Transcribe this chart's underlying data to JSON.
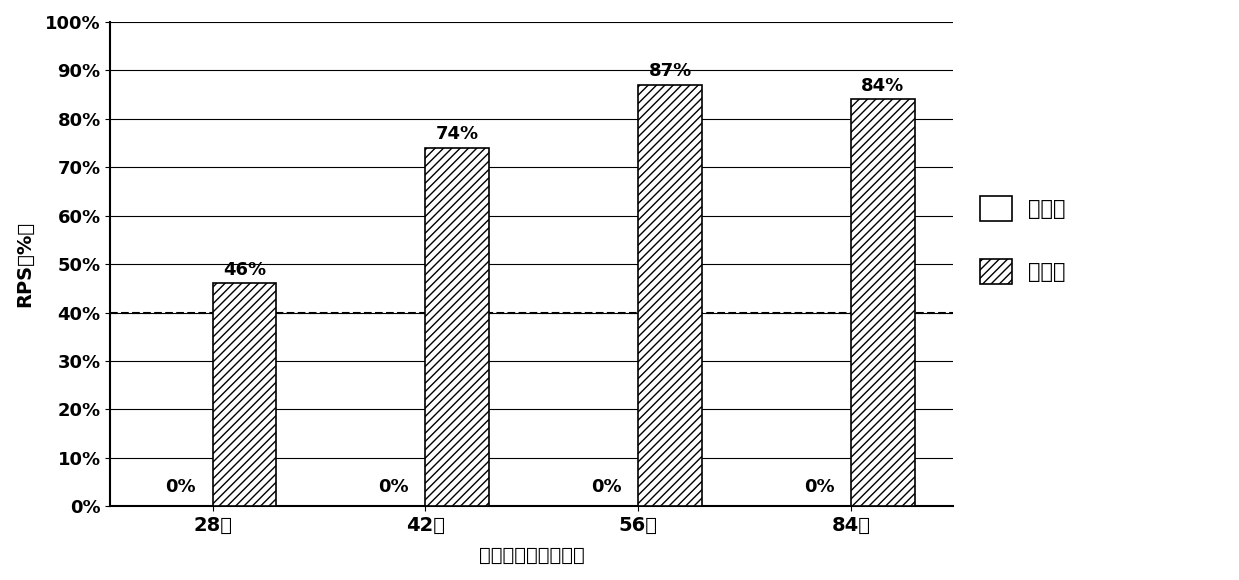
{
  "groups": [
    "28天",
    "42天",
    "56天",
    "84天"
  ],
  "control_values": [
    0,
    0,
    0,
    0
  ],
  "experiment_values": [
    46,
    74,
    87,
    84
  ],
  "control_labels": [
    "0%",
    "0%",
    "0%",
    "0%"
  ],
  "experiment_labels": [
    "46%",
    "74%",
    "87%",
    "84%"
  ],
  "ylabel": "RPS（%）",
  "xlabel": "免疫保护时间（天）",
  "ylim": [
    0,
    100
  ],
  "yticks": [
    0,
    10,
    20,
    30,
    40,
    50,
    60,
    70,
    80,
    90,
    100
  ],
  "ytick_labels": [
    "0%",
    "10%",
    "20%",
    "30%",
    "40%",
    "50%",
    "60%",
    "70%",
    "80%",
    "90%",
    "100%"
  ],
  "hline_y": 40,
  "bar_width": 0.3,
  "control_color": "white",
  "experiment_hatch": "////",
  "legend_control": "对照组",
  "legend_experiment": "实验组",
  "background_color": "white",
  "bar_edge_color": "black"
}
